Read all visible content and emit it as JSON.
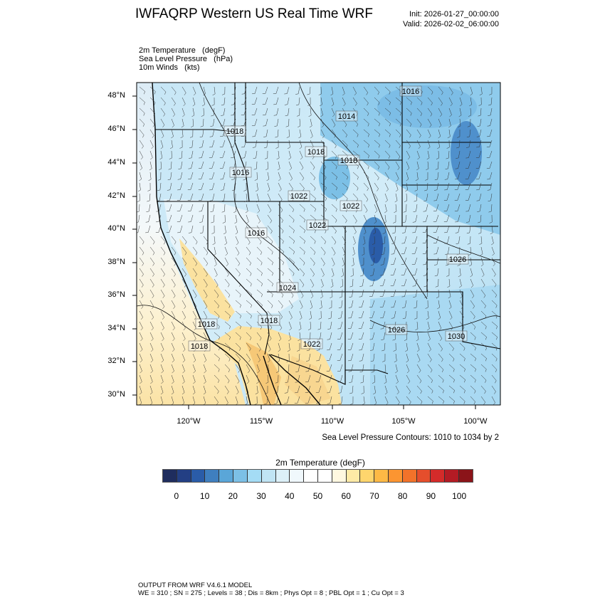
{
  "header": {
    "title": "IWFAQRP Western US Real Time WRF",
    "init": "Init: 2026-01-27_00:00:00",
    "valid": "Valid: 2026-02-02_06:00:00"
  },
  "fields": [
    "2m Temperature   (degF)",
    "Sea Level Pressure   (hPa)",
    "10m Winds   (kts)"
  ],
  "map": {
    "lat_labels": [
      "48°N",
      "46°N",
      "44°N",
      "42°N",
      "40°N",
      "38°N",
      "36°N",
      "34°N",
      "32°N",
      "30°N"
    ],
    "lon_labels": [
      "120°W",
      "115°W",
      "110°W",
      "105°W",
      "100°W"
    ],
    "contour_labels": [
      "1016",
      "1014",
      "1018",
      "1018",
      "1018",
      "1016",
      "1022",
      "1022",
      "1022",
      "1016",
      "1026",
      "1024",
      "1018",
      "1018",
      "1026",
      "1030",
      "1018",
      "1022"
    ],
    "contour_note": "Sea Level Pressure Contours: 1010 to 1034 by 2"
  },
  "colorbar": {
    "title": "2m Temperature  (degF)",
    "tick_labels": [
      "0",
      "10",
      "20",
      "30",
      "40",
      "50",
      "60",
      "70",
      "80",
      "90",
      "100"
    ],
    "colors": [
      "#1f2d5e",
      "#233f84",
      "#2a5ca8",
      "#3f7fbf",
      "#5aa6d8",
      "#7cc0e6",
      "#a4dcf5",
      "#c0e4f4",
      "#dcf0f8",
      "#f0f8fc",
      "#ffffff",
      "#ffffff",
      "#fff8e0",
      "#feeaa6",
      "#fed56d",
      "#feb945",
      "#fc9531",
      "#f2722a",
      "#e54e2c",
      "#d42b2a",
      "#b31b24",
      "#8b1419"
    ]
  },
  "footer": {
    "line1": "OUTPUT FROM WRF V4.6.1 MODEL",
    "line2": "WE = 310 ; SN = 275 ; Levels = 38 ; Dis = 8km ; Phys Opt = 8 ; PBL Opt = 1 ; Cu Opt = 3"
  }
}
